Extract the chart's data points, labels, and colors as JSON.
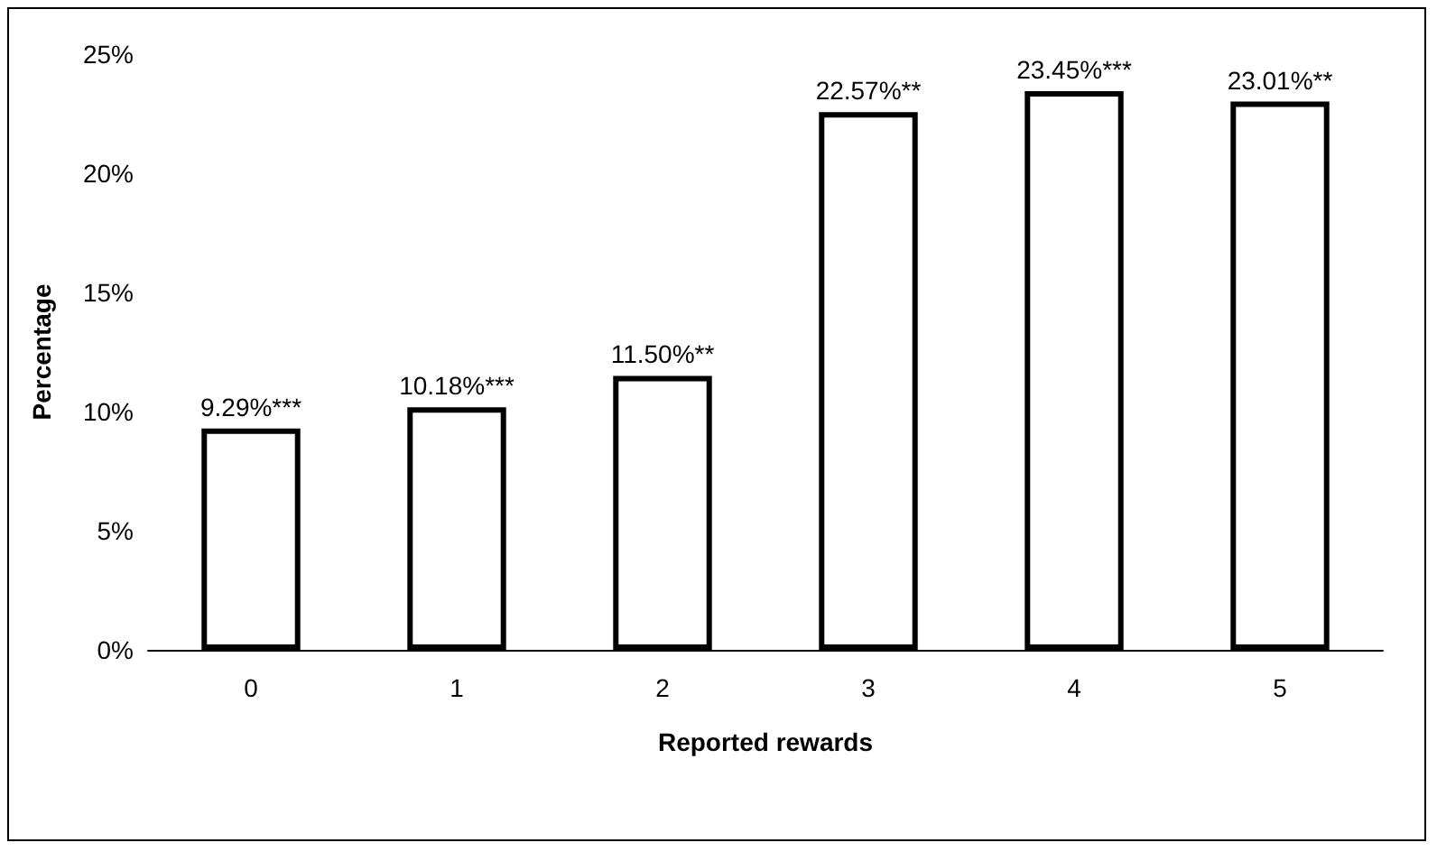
{
  "chart_data": {
    "type": "bar",
    "xlabel": "Reported rewards",
    "ylabel": "Percentage",
    "categories": [
      "0",
      "1",
      "2",
      "3",
      "4",
      "5"
    ],
    "values": [
      9.29,
      10.18,
      11.5,
      22.57,
      23.45,
      23.01
    ],
    "color": "#ffffff",
    "value_labels": [
      "9.29%***",
      "10.18%***",
      "11.50%**",
      "22.57%**",
      "23.45%***",
      "23.01%**"
    ],
    "ylim": [
      0,
      25
    ],
    "yticks": [
      {
        "value": 0,
        "label": "0%"
      },
      {
        "value": 5,
        "label": "5%"
      },
      {
        "value": 10,
        "label": "10%"
      },
      {
        "value": 15,
        "label": "15%"
      },
      {
        "value": 20,
        "label": "20%"
      },
      {
        "value": 25,
        "label": "25%"
      }
    ],
    "grid": false
  }
}
